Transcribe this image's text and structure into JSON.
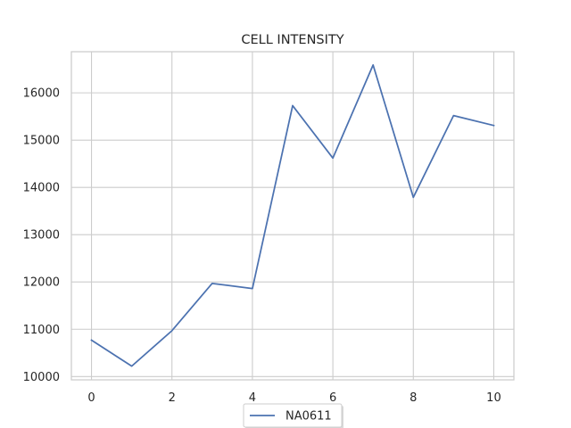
{
  "chart_data": {
    "type": "line",
    "title": "CELL INTENSITY",
    "xlabel": "",
    "ylabel": "",
    "x": [
      0,
      1,
      2,
      3,
      4,
      5,
      6,
      7,
      8,
      9,
      10
    ],
    "series": [
      {
        "name": "NA0611",
        "color": "#4c72b0",
        "values": [
          10770,
          10220,
          10970,
          11970,
          11860,
          15730,
          14620,
          16590,
          13790,
          15520,
          15310
        ]
      }
    ],
    "xlim": [
      -0.5,
      10.5
    ],
    "ylim": [
      9930,
      16870
    ],
    "xticks": [
      0,
      2,
      4,
      6,
      8,
      10
    ],
    "yticks": [
      10000,
      11000,
      12000,
      13000,
      14000,
      15000,
      16000
    ],
    "grid": true,
    "legend_position": "bottom-center",
    "colors": {
      "axis": "#cccccc",
      "grid": "#cccccc",
      "text": "#262626",
      "background": "#ffffff"
    }
  }
}
